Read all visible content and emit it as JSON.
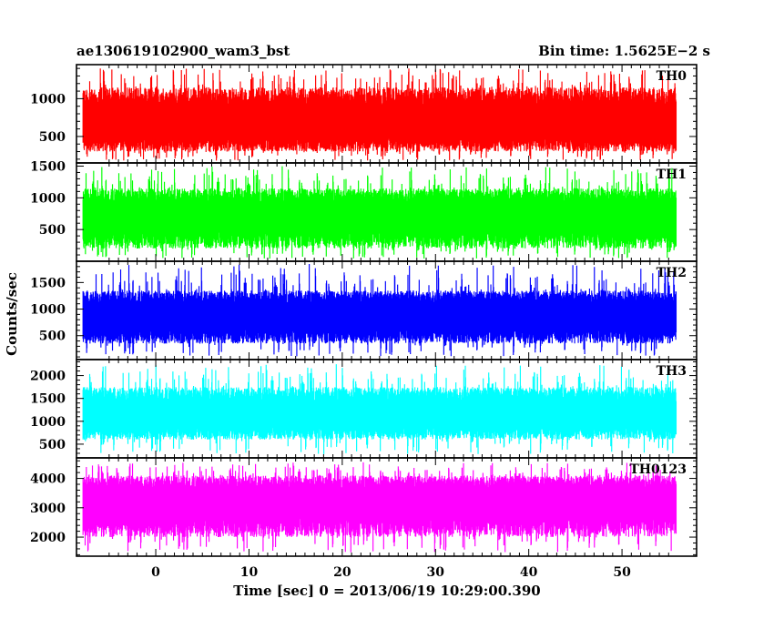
{
  "chart_data": {
    "type": "line",
    "title": "ae130619102900_wam3_bst",
    "subtitle": "Bin time: 1.5625E−2 s",
    "xlabel": "Time [sec] 0 = 2013/06/19 10:29:00.390",
    "ylabel": "Counts/sec",
    "xlim": [
      -8.5,
      58
    ],
    "xticks": [
      0,
      10,
      20,
      30,
      40,
      50
    ],
    "x_range_data": [
      -7.8,
      55.8
    ],
    "grid": false,
    "panels": [
      {
        "name": "TH0",
        "color": "#ff0000",
        "ylim": [
          150,
          1450
        ],
        "yticks": [
          500,
          1000
        ],
        "mean": 600,
        "low": 300,
        "high": 1150,
        "max": 1400
      },
      {
        "name": "TH1",
        "color": "#00ff00",
        "ylim": [
          0,
          1550
        ],
        "yticks": [
          500,
          1000,
          1500
        ],
        "mean": 650,
        "low": 200,
        "high": 1150,
        "max": 1500
      },
      {
        "name": "TH2",
        "color": "#0000ff",
        "ylim": [
          50,
          1900
        ],
        "yticks": [
          500,
          1000,
          1500
        ],
        "mean": 800,
        "low": 350,
        "high": 1350,
        "max": 1850
      },
      {
        "name": "TH3",
        "color": "#00ffff",
        "ylim": [
          200,
          2350
        ],
        "yticks": [
          500,
          1000,
          1500,
          2000
        ],
        "mean": 1050,
        "low": 600,
        "high": 1750,
        "max": 2250
      },
      {
        "name": "TH0123",
        "color": "#ff00ff",
        "ylim": [
          1350,
          4700
        ],
        "yticks": [
          2000,
          3000,
          4000
        ],
        "mean": 3100,
        "low": 2000,
        "high": 4100,
        "max": 4550
      }
    ]
  }
}
